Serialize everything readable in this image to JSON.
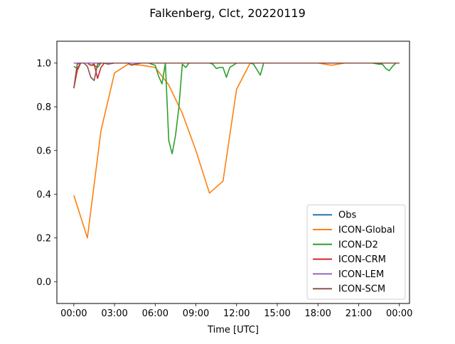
{
  "chart_data": {
    "type": "line",
    "title": "Falkenberg, Clct, 20220119",
    "xlabel": "Time [UTC]",
    "ylabel": "",
    "xlim": [
      "2022-01-18 22:45",
      "2022-01-20 00:45"
    ],
    "ylim": [
      -0.1,
      1.1
    ],
    "xticks": [
      "00:00",
      "03:00",
      "06:00",
      "09:00",
      "12:00",
      "15:00",
      "18:00",
      "21:00",
      "00:00"
    ],
    "yticks": [
      "0.0",
      "0.2",
      "0.4",
      "0.6",
      "0.8",
      "1.0"
    ],
    "grid": false,
    "legend_position": "lower right",
    "series": [
      {
        "name": "Obs",
        "color": "#1f77b4",
        "x": [
          "00:00",
          "24:00"
        ],
        "y": [
          1.0,
          1.0
        ]
      },
      {
        "name": "ICON-Global",
        "color": "#ff7f0e",
        "x": [
          "00:00",
          "01:00",
          "02:00",
          "03:00",
          "04:00",
          "05:00",
          "06:00",
          "07:00",
          "08:00",
          "09:00",
          "10:00",
          "11:00",
          "12:00",
          "13:00",
          "14:00",
          "15:00",
          "16:00",
          "17:00",
          "18:00",
          "19:00",
          "20:00",
          "21:00",
          "22:00",
          "23:00",
          "24:00"
        ],
        "y": [
          0.395,
          0.2,
          0.69,
          0.955,
          0.995,
          0.99,
          0.98,
          0.9,
          0.77,
          0.6,
          0.405,
          0.46,
          0.88,
          1.0,
          1.0,
          1.0,
          1.0,
          1.0,
          1.0,
          0.99,
          1.0,
          1.0,
          1.0,
          1.0,
          1.0
        ]
      },
      {
        "name": "ICON-D2",
        "color": "#2ca02c",
        "x": [
          "00:00",
          "00:15",
          "00:30",
          "00:45",
          "01:00",
          "01:15",
          "01:30",
          "01:45",
          "02:00",
          "02:15",
          "02:30",
          "03:00",
          "04:00",
          "05:00",
          "05:30",
          "06:00",
          "06:15",
          "06:30",
          "06:45",
          "07:00",
          "07:15",
          "07:30",
          "07:45",
          "08:00",
          "08:15",
          "08:30",
          "09:00",
          "10:00",
          "10:15",
          "10:30",
          "10:45",
          "11:00",
          "11:15",
          "11:30",
          "12:00",
          "13:00",
          "13:15",
          "13:30",
          "13:45",
          "14:00",
          "15:00",
          "16:00",
          "17:00",
          "18:00",
          "19:00",
          "20:00",
          "21:00",
          "22:00",
          "22:30",
          "22:45",
          "23:00",
          "23:15",
          "23:30",
          "23:45"
        ],
        "y": [
          0.985,
          0.975,
          1.0,
          1.0,
          1.0,
          0.99,
          0.99,
          0.98,
          1.0,
          1.0,
          1.0,
          1.0,
          1.0,
          1.0,
          1.0,
          0.99,
          0.94,
          0.905,
          1.0,
          0.645,
          0.585,
          0.67,
          0.8,
          0.995,
          0.98,
          1.0,
          1.0,
          1.0,
          0.995,
          0.975,
          0.98,
          0.98,
          0.935,
          0.98,
          1.0,
          1.0,
          0.995,
          0.97,
          0.945,
          1.0,
          1.0,
          1.0,
          1.0,
          1.0,
          1.0,
          1.0,
          1.0,
          1.0,
          0.995,
          0.995,
          0.975,
          0.965,
          0.985,
          1.0
        ]
      },
      {
        "name": "ICON-CRM",
        "color": "#d62728",
        "x": [
          "00:00",
          "00:15",
          "00:30",
          "00:45",
          "01:00",
          "01:15",
          "01:30",
          "01:45",
          "02:00",
          "02:15",
          "02:30",
          "24:00"
        ],
        "y": [
          0.885,
          0.965,
          1.0,
          1.0,
          1.0,
          0.99,
          0.995,
          0.93,
          0.98,
          1.0,
          1.0,
          1.0
        ]
      },
      {
        "name": "ICON-LEM",
        "color": "#9467bd",
        "x": [
          "00:00",
          "24:00"
        ],
        "y": [
          1.0,
          1.0
        ]
      },
      {
        "name": "ICON-SCM",
        "color": "#8c564b",
        "x": [
          "00:00",
          "00:15",
          "00:30",
          "00:45",
          "01:00",
          "01:15",
          "01:30",
          "01:45",
          "02:00",
          "02:15",
          "02:30",
          "03:00",
          "04:00",
          "04:15",
          "04:30",
          "05:00",
          "24:00"
        ],
        "y": [
          0.885,
          0.995,
          1.0,
          1.0,
          0.985,
          0.935,
          0.92,
          0.995,
          1.0,
          1.0,
          0.995,
          1.0,
          1.0,
          0.99,
          0.995,
          1.0,
          1.0
        ]
      }
    ]
  }
}
